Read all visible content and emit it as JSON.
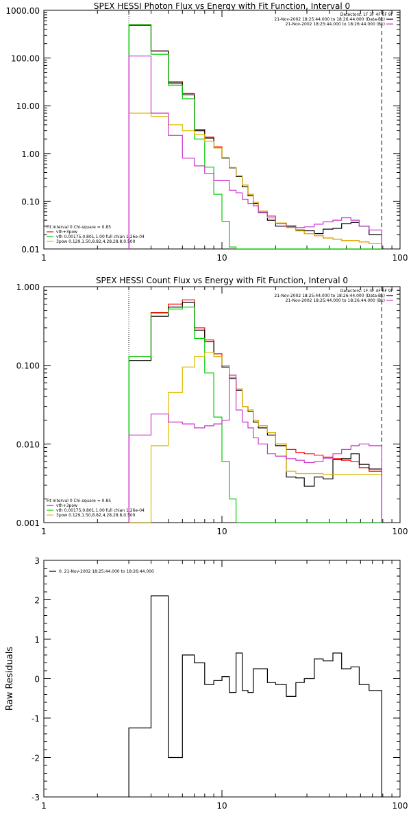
{
  "chart_data": [
    {
      "type": "line",
      "step": true,
      "title": "SPEX HESSI Photon Flux vs Energy with Fit Function, Interval 0",
      "xscale": "log",
      "yscale": "log",
      "xlim": [
        1,
        100
      ],
      "ylim": [
        0.01,
        1000
      ],
      "xticks": [
        1,
        10,
        100
      ],
      "xticklabels": [
        "1",
        "10",
        "100"
      ],
      "yticks": [
        0.01,
        0.1,
        1,
        10,
        100,
        1000
      ],
      "yticklabels": [
        "0.01",
        "0.10",
        "1.00",
        "10.00",
        "100.00",
        "1000.00"
      ],
      "ylabel": "",
      "xlabel": "",
      "vlines": [
        {
          "x": 3.0,
          "style": "dotted"
        },
        {
          "x": 79,
          "style": "dashed"
        }
      ],
      "edges": [
        3.0,
        4.0,
        5.0,
        6.0,
        7.0,
        8.0,
        9.0,
        10.0,
        11.0,
        12.0,
        13.0,
        14.0,
        15.0,
        16.0,
        18.0,
        20.0,
        23.0,
        26.0,
        29.0,
        33.0,
        37.0,
        42.0,
        47.0,
        53.0,
        59.0,
        67.0,
        79.0
      ],
      "legend_top": {
        "header": "Detectors: 1F 3F 4F 6F 9F",
        "entries": [
          {
            "text": "21-Nov-2002 18:25:44.000 to 18:26:44.000 (Data-Bk)",
            "color": "#000000"
          },
          {
            "text": "21-Nov-2002 18:25:44.000 to 18:26:44.000 (Bk)",
            "color": "#cc33cc"
          }
        ]
      },
      "legend_bottom": {
        "header": "Fit Interval 0   Chi-square = 0.85",
        "entries": [
          {
            "text": "vth+3pow",
            "color": "#ff0000"
          },
          {
            "text": "vth 0.00175,0.801,1.00  full chian 1.26e-04",
            "color": "#00cc00"
          },
          {
            "text": "3pow 0.129,1.50,8.82,4.28,28.8,0.500",
            "color": "#ddbb00"
          }
        ]
      },
      "series": [
        {
          "name": "vth+3pow",
          "color": "#ff0000",
          "values": [
            500,
            140,
            32,
            18,
            3.2,
            2.2,
            1.38,
            0.82,
            0.51,
            0.34,
            0.22,
            0.14,
            0.095,
            0.062,
            0.045,
            0.035,
            0.028,
            0.024,
            0.021,
            0.019,
            0.017,
            0.016,
            0.015,
            0.015,
            0.014,
            0.013
          ]
        },
        {
          "name": "Data-Bk",
          "color": "#000000",
          "values": [
            480,
            140,
            30,
            17,
            3.0,
            2.1,
            1.3,
            0.8,
            0.5,
            0.33,
            0.2,
            0.13,
            0.09,
            0.058,
            0.04,
            0.03,
            0.029,
            0.025,
            0.024,
            0.021,
            0.026,
            0.027,
            0.034,
            0.036,
            0.03,
            0.02
          ]
        },
        {
          "name": "vth",
          "color": "#00cc00",
          "values": [
            500,
            120,
            27,
            14,
            2.0,
            0.52,
            0.14,
            0.038,
            0.011,
            0.0,
            0.0,
            0.0,
            0.0,
            0.0,
            0.0,
            0.0,
            0.0,
            0.0,
            0.0,
            0.0,
            0.0,
            0.0,
            0.0,
            0.0,
            0.0,
            0.0
          ]
        },
        {
          "name": "3pow",
          "color": "#ddbb00",
          "values": [
            7,
            6,
            4,
            3,
            2.5,
            1.8,
            1.3,
            0.82,
            0.51,
            0.34,
            0.22,
            0.14,
            0.095,
            0.062,
            0.045,
            0.035,
            0.028,
            0.024,
            0.021,
            0.019,
            0.017,
            0.016,
            0.015,
            0.015,
            0.014,
            0.013
          ]
        },
        {
          "name": "Bk",
          "color": "#cc33cc",
          "values": [
            110,
            7,
            2.4,
            0.8,
            0.55,
            0.38,
            0.27,
            0.27,
            0.17,
            0.15,
            0.11,
            0.09,
            0.08,
            0.059,
            0.049,
            0.034,
            0.031,
            0.028,
            0.029,
            0.033,
            0.037,
            0.04,
            0.045,
            0.04,
            0.03,
            0.025
          ]
        }
      ]
    },
    {
      "type": "line",
      "step": true,
      "title": "SPEX HESSI Count Flux vs Energy with Fit Function, Interval 0",
      "xscale": "log",
      "yscale": "log",
      "xlim": [
        1,
        100
      ],
      "ylim": [
        0.001,
        1
      ],
      "xticks": [
        1,
        10,
        100
      ],
      "xticklabels": [
        "1",
        "10",
        "100"
      ],
      "yticks": [
        0.001,
        0.01,
        0.1,
        1
      ],
      "yticklabels": [
        "0.001",
        "0.010",
        "0.100",
        "1.000"
      ],
      "ylabel": "",
      "xlabel": "",
      "vlines": [
        {
          "x": 3.0,
          "style": "dotted"
        },
        {
          "x": 79,
          "style": "dashed"
        }
      ],
      "edges": [
        3.0,
        4.0,
        5.0,
        6.0,
        7.0,
        8.0,
        9.0,
        10.0,
        11.0,
        12.0,
        13.0,
        14.0,
        15.0,
        16.0,
        18.0,
        20.0,
        23.0,
        26.0,
        29.0,
        33.0,
        37.0,
        42.0,
        47.0,
        53.0,
        59.0,
        67.0,
        79.0
      ],
      "legend_top": {
        "header": "Detectors: 1F 3F 4F 6F 9F",
        "entries": [
          {
            "text": "21-Nov-2002 18:25:44.000 to 18:26:44.000 (Data-Bk)",
            "color": "#000000"
          },
          {
            "text": "21-Nov-2002 18:25:44.000 to 18:26:44.000 (Bk)",
            "color": "#cc33cc"
          }
        ]
      },
      "legend_bottom": {
        "header": "Fit Interval 0   Chi-square = 0.85",
        "entries": [
          {
            "text": "vth+3pow",
            "color": "#ff0000"
          },
          {
            "text": "vth 0.00175,0.801,1.00  full chian 1.26e-04",
            "color": "#00cc00"
          },
          {
            "text": "3pow 0.129,1.50,8.82,4.28,28.8,0.500",
            "color": "#ddbb00"
          }
        ]
      },
      "series": [
        {
          "name": "vth+3pow",
          "color": "#ff0000",
          "values": [
            0.13,
            0.47,
            0.6,
            0.68,
            0.3,
            0.21,
            0.14,
            0.1,
            0.07,
            0.05,
            0.03,
            0.027,
            0.02,
            0.017,
            0.014,
            0.01,
            0.0085,
            0.0078,
            0.0075,
            0.0072,
            0.0068,
            0.0065,
            0.0062,
            0.006,
            0.005,
            0.0045
          ]
        },
        {
          "name": "Data-Bk",
          "color": "#000000",
          "values": [
            0.115,
            0.42,
            0.55,
            0.63,
            0.28,
            0.2,
            0.13,
            0.095,
            0.068,
            0.048,
            0.03,
            0.026,
            0.019,
            0.016,
            0.013,
            0.0095,
            0.0038,
            0.0037,
            0.0029,
            0.0038,
            0.0036,
            0.0063,
            0.0065,
            0.0075,
            0.0055,
            0.0048
          ]
        },
        {
          "name": "vth",
          "color": "#00cc00",
          "values": [
            0.13,
            0.46,
            0.52,
            0.55,
            0.22,
            0.08,
            0.022,
            0.006,
            0.002,
            0.001,
            0.0,
            0.0,
            0.0,
            0.0,
            0.0,
            0.0,
            0.0,
            0.0,
            0.0,
            0.0,
            0.0,
            0.0,
            0.0,
            0.0,
            0.0,
            0.0
          ]
        },
        {
          "name": "3pow",
          "color": "#ddbb00",
          "values": [
            0.0008,
            0.0095,
            0.045,
            0.095,
            0.13,
            0.145,
            0.13,
            0.1,
            0.07,
            0.05,
            0.03,
            0.027,
            0.02,
            0.017,
            0.014,
            0.01,
            0.0045,
            0.0042,
            0.0042,
            0.0042,
            0.0041,
            0.0041,
            0.0041,
            0.0041,
            0.0041,
            0.0041
          ]
        },
        {
          "name": "Bk",
          "color": "#cc33cc",
          "values": [
            0.013,
            0.024,
            0.019,
            0.018,
            0.016,
            0.017,
            0.018,
            0.02,
            0.075,
            0.027,
            0.019,
            0.016,
            0.012,
            0.01,
            0.0075,
            0.007,
            0.0065,
            0.0062,
            0.0058,
            0.006,
            0.0066,
            0.0075,
            0.0085,
            0.0095,
            0.01,
            0.0095
          ]
        }
      ]
    },
    {
      "type": "line",
      "step": true,
      "title": "",
      "xscale": "log",
      "yscale": "linear",
      "xlim": [
        1,
        100
      ],
      "ylim": [
        -3,
        3
      ],
      "xticks": [
        1,
        10,
        100
      ],
      "xticklabels": [
        "1",
        "10",
        "100"
      ],
      "yticks": [
        -3,
        -2,
        -1,
        0,
        1,
        2,
        3
      ],
      "yticklabels": [
        "-3",
        "-2",
        "-1",
        "0",
        "1",
        "2",
        "3"
      ],
      "ylabel": "Raw Residuals",
      "xlabel": "",
      "edges": [
        3.0,
        4.0,
        5.0,
        6.0,
        7.0,
        8.0,
        9.0,
        10.0,
        11.0,
        12.0,
        13.0,
        14.0,
        15.0,
        16.0,
        18.0,
        20.0,
        23.0,
        26.0,
        29.0,
        33.0,
        37.0,
        42.0,
        47.0,
        53.0,
        59.0,
        67.0,
        79.0
      ],
      "legend_top": {
        "header": "",
        "entries": [
          {
            "text": "0. 21-Nov-2002 18:25:44.000 to 18:26:44.000",
            "color": "#000000"
          }
        ]
      },
      "series": [
        {
          "name": "0. 21-Nov-2002 18:25:44.000 to 18:26:44.000",
          "color": "#000000",
          "values": [
            -1.25,
            2.1,
            -2.0,
            0.6,
            0.4,
            -0.15,
            -0.05,
            0.05,
            -0.35,
            0.65,
            -0.3,
            -0.35,
            0.25,
            0.25,
            -0.1,
            -0.15,
            -0.45,
            -0.1,
            0.0,
            0.5,
            0.45,
            0.65,
            0.25,
            0.3,
            -0.15,
            -0.3
          ]
        }
      ]
    }
  ]
}
